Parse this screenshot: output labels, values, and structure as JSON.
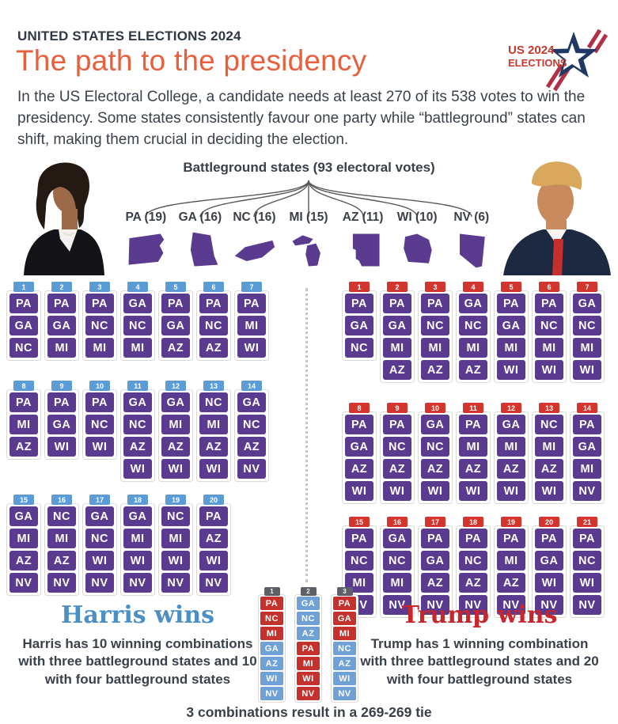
{
  "header": {
    "kicker": "UNITED STATES ELECTIONS 2024",
    "title": "The path to the presidency",
    "intro": "In the US Electoral College, a candidate needs at least 270 of its 538 votes to win the presidency. Some states consistently favour one party while “battleground” states can shift, making them crucial in deciding the election.",
    "logo": {
      "line1": "US 2024",
      "line2": "ELECTIONS"
    }
  },
  "battleground": {
    "title": "Battleground states (93 electoral votes)",
    "states": [
      {
        "abbr": "PA",
        "votes": 19,
        "label": "PA (19)"
      },
      {
        "abbr": "GA",
        "votes": 16,
        "label": "GA (16)"
      },
      {
        "abbr": "NC",
        "votes": 16,
        "label": "NC (16)"
      },
      {
        "abbr": "MI",
        "votes": 15,
        "label": "MI (15)"
      },
      {
        "abbr": "AZ",
        "votes": 11,
        "label": "AZ (11)"
      },
      {
        "abbr": "WI",
        "votes": 10,
        "label": "WI (10)"
      },
      {
        "abbr": "NV",
        "votes": 6,
        "label": "NV (6)"
      }
    ]
  },
  "harris": {
    "title": "Harris wins",
    "summary": "Harris has 10 winning combinations with three battleground states and 10 with four battleground states",
    "combinations": [
      {
        "n": 1,
        "states": [
          "PA",
          "GA",
          "NC"
        ]
      },
      {
        "n": 2,
        "states": [
          "PA",
          "GA",
          "MI"
        ]
      },
      {
        "n": 3,
        "states": [
          "PA",
          "NC",
          "MI"
        ]
      },
      {
        "n": 4,
        "states": [
          "GA",
          "NC",
          "MI"
        ]
      },
      {
        "n": 5,
        "states": [
          "PA",
          "GA",
          "AZ"
        ]
      },
      {
        "n": 6,
        "states": [
          "PA",
          "NC",
          "AZ"
        ]
      },
      {
        "n": 7,
        "states": [
          "PA",
          "MI",
          "WI"
        ]
      },
      {
        "n": 8,
        "states": [
          "PA",
          "MI",
          "AZ"
        ]
      },
      {
        "n": 9,
        "states": [
          "PA",
          "GA",
          "WI"
        ]
      },
      {
        "n": 10,
        "states": [
          "PA",
          "NC",
          "WI"
        ]
      },
      {
        "n": 11,
        "states": [
          "GA",
          "NC",
          "AZ",
          "WI"
        ]
      },
      {
        "n": 12,
        "states": [
          "GA",
          "MI",
          "AZ",
          "WI"
        ]
      },
      {
        "n": 13,
        "states": [
          "NC",
          "MI",
          "AZ",
          "WI"
        ]
      },
      {
        "n": 14,
        "states": [
          "GA",
          "NC",
          "AZ",
          "NV"
        ]
      },
      {
        "n": 15,
        "states": [
          "GA",
          "MI",
          "AZ",
          "NV"
        ]
      },
      {
        "n": 16,
        "states": [
          "NC",
          "MI",
          "AZ",
          "NV"
        ]
      },
      {
        "n": 17,
        "states": [
          "GA",
          "NC",
          "WI",
          "NV"
        ]
      },
      {
        "n": 18,
        "states": [
          "GA",
          "MI",
          "WI",
          "NV"
        ]
      },
      {
        "n": 19,
        "states": [
          "NC",
          "MI",
          "WI",
          "NV"
        ]
      },
      {
        "n": 20,
        "states": [
          "PA",
          "AZ",
          "WI",
          "NV"
        ]
      }
    ]
  },
  "trump": {
    "title": "Trump wins",
    "summary": "Trump has 1 winning combination with three battleground states and 20 with four battleground states",
    "combinations": [
      {
        "n": 1,
        "states": [
          "PA",
          "GA",
          "NC"
        ]
      },
      {
        "n": 2,
        "states": [
          "PA",
          "GA",
          "MI",
          "AZ"
        ]
      },
      {
        "n": 3,
        "states": [
          "PA",
          "NC",
          "MI",
          "AZ"
        ]
      },
      {
        "n": 4,
        "states": [
          "GA",
          "NC",
          "MI",
          "AZ"
        ]
      },
      {
        "n": 5,
        "states": [
          "PA",
          "GA",
          "MI",
          "WI"
        ]
      },
      {
        "n": 6,
        "states": [
          "PA",
          "NC",
          "MI",
          "WI"
        ]
      },
      {
        "n": 7,
        "states": [
          "GA",
          "NC",
          "MI",
          "WI"
        ]
      },
      {
        "n": 8,
        "states": [
          "PA",
          "GA",
          "AZ",
          "WI"
        ]
      },
      {
        "n": 9,
        "states": [
          "PA",
          "NC",
          "AZ",
          "WI"
        ]
      },
      {
        "n": 10,
        "states": [
          "GA",
          "NC",
          "AZ",
          "WI"
        ]
      },
      {
        "n": 11,
        "states": [
          "PA",
          "MI",
          "AZ",
          "WI"
        ]
      },
      {
        "n": 12,
        "states": [
          "GA",
          "MI",
          "AZ",
          "WI"
        ]
      },
      {
        "n": 13,
        "states": [
          "NC",
          "MI",
          "AZ",
          "WI"
        ]
      },
      {
        "n": 14,
        "states": [
          "PA",
          "GA",
          "MI",
          "NV"
        ]
      },
      {
        "n": 15,
        "states": [
          "PA",
          "NC",
          "MI",
          "NV"
        ]
      },
      {
        "n": 16,
        "states": [
          "GA",
          "NC",
          "MI",
          "NV"
        ]
      },
      {
        "n": 17,
        "states": [
          "PA",
          "GA",
          "AZ",
          "NV"
        ]
      },
      {
        "n": 18,
        "states": [
          "PA",
          "NC",
          "AZ",
          "NV"
        ]
      },
      {
        "n": 19,
        "states": [
          "PA",
          "MI",
          "AZ",
          "NV"
        ]
      },
      {
        "n": 20,
        "states": [
          "PA",
          "GA",
          "WI",
          "NV"
        ]
      },
      {
        "n": 21,
        "states": [
          "PA",
          "NC",
          "WI",
          "NV"
        ]
      }
    ]
  },
  "tie": {
    "caption": "3 combinations result in a 269-269 tie",
    "combinations": [
      {
        "n": 1,
        "states": [
          {
            "abbr": "PA",
            "side": "trump"
          },
          {
            "abbr": "NC",
            "side": "trump"
          },
          {
            "abbr": "MI",
            "side": "trump"
          },
          {
            "abbr": "GA",
            "side": "harris"
          },
          {
            "abbr": "AZ",
            "side": "harris"
          },
          {
            "abbr": "WI",
            "side": "harris"
          },
          {
            "abbr": "NV",
            "side": "harris"
          }
        ]
      },
      {
        "n": 2,
        "states": [
          {
            "abbr": "GA",
            "side": "harris"
          },
          {
            "abbr": "NC",
            "side": "harris"
          },
          {
            "abbr": "AZ",
            "side": "harris"
          },
          {
            "abbr": "PA",
            "side": "trump"
          },
          {
            "abbr": "MI",
            "side": "trump"
          },
          {
            "abbr": "WI",
            "side": "trump"
          },
          {
            "abbr": "NV",
            "side": "trump"
          }
        ]
      },
      {
        "n": 3,
        "states": [
          {
            "abbr": "PA",
            "side": "trump"
          },
          {
            "abbr": "GA",
            "side": "trump"
          },
          {
            "abbr": "MI",
            "side": "trump"
          },
          {
            "abbr": "NC",
            "side": "harris"
          },
          {
            "abbr": "AZ",
            "side": "harris"
          },
          {
            "abbr": "WI",
            "side": "harris"
          },
          {
            "abbr": "NV",
            "side": "harris"
          }
        ]
      }
    ]
  },
  "colors": {
    "accent_orange": "#E85F3D",
    "state_purple": "#5A3B8F",
    "harris_blue": "#5C9CD6",
    "trump_red": "#D2342E",
    "tie_badge_gray": "#5D6066",
    "text_dark": "#3A414B"
  }
}
